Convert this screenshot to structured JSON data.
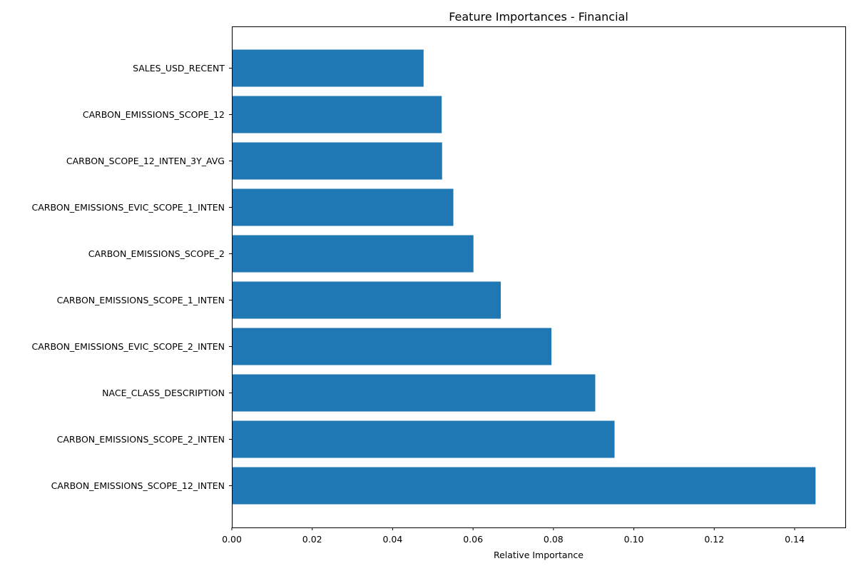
{
  "chart_data": {
    "type": "bar",
    "orientation": "horizontal",
    "title": "Feature Importances - Financial",
    "xlabel": "Relative Importance",
    "ylabel": "",
    "xlim": [
      0,
      0.1526
    ],
    "xticks": [
      0.0,
      0.02,
      0.04,
      0.06,
      0.08,
      0.1,
      0.12,
      0.14
    ],
    "xtick_labels": [
      "0.00",
      "0.02",
      "0.04",
      "0.06",
      "0.08",
      "0.10",
      "0.12",
      "0.14"
    ],
    "grid": false,
    "bar_color": "#1f77b4",
    "categories": [
      "CARBON_EMISSIONS_SCOPE_12_INTEN",
      "CARBON_EMISSIONS_SCOPE_2_INTEN",
      "NACE_CLASS_DESCRIPTION",
      "CARBON_EMISSIONS_EVIC_SCOPE_2_INTEN",
      "CARBON_EMISSIONS_SCOPE_1_INTEN",
      "CARBON_EMISSIONS_SCOPE_2",
      "CARBON_EMISSIONS_EVIC_SCOPE_1_INTEN",
      "CARBON_SCOPE_12_INTEN_3Y_AVG",
      "CARBON_EMISSIONS_SCOPE_12",
      "SALES_USD_RECENT"
    ],
    "values": [
      0.1452,
      0.0952,
      0.0904,
      0.0795,
      0.0669,
      0.0601,
      0.0551,
      0.0523,
      0.0522,
      0.0477
    ]
  }
}
